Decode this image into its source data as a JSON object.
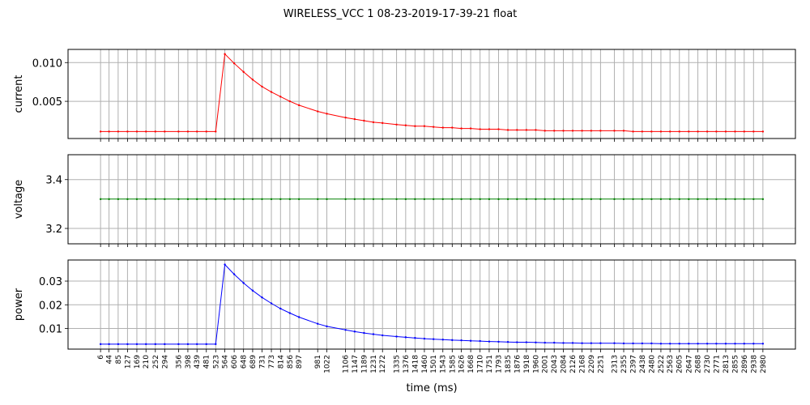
{
  "figure": {
    "title": "WIRELESS_VCC   1   08-23-2019-17-39-21   float",
    "xlabel": "time (ms)"
  },
  "chart_data": [
    {
      "type": "line",
      "ylabel": "current",
      "color": "#ff0000",
      "ylim": [
        0.0002,
        0.0117
      ],
      "yticks": [
        0.005,
        0.01
      ],
      "ytick_labels": [
        "0.005",
        "0.010"
      ],
      "grid": true,
      "x": [
        6,
        44,
        85,
        127,
        169,
        210,
        252,
        294,
        356,
        398,
        439,
        481,
        523,
        564,
        606,
        648,
        689,
        731,
        773,
        814,
        856,
        897,
        981,
        1022,
        1106,
        1147,
        1189,
        1231,
        1272,
        1335,
        1376,
        1418,
        1460,
        1501,
        1543,
        1585,
        1626,
        1668,
        1710,
        1751,
        1793,
        1835,
        1876,
        1918,
        1960,
        2001,
        2043,
        2084,
        2126,
        2168,
        2209,
        2251,
        2313,
        2355,
        2397,
        2438,
        2480,
        2522,
        2563,
        2605,
        2647,
        2688,
        2730,
        2771,
        2813,
        2855,
        2896,
        2938,
        2980
      ],
      "values": [
        0.0011,
        0.0011,
        0.0011,
        0.0011,
        0.0011,
        0.0011,
        0.0011,
        0.0011,
        0.0011,
        0.0011,
        0.0011,
        0.0011,
        0.0011,
        0.0111,
        0.0099,
        0.0088,
        0.0078,
        0.0069,
        0.0062,
        0.0056,
        0.005,
        0.0045,
        0.0037,
        0.0034,
        0.0029,
        0.0027,
        0.0025,
        0.0023,
        0.0022,
        0.002,
        0.0019,
        0.0018,
        0.0018,
        0.0017,
        0.0016,
        0.0016,
        0.0015,
        0.0015,
        0.0014,
        0.0014,
        0.0014,
        0.0013,
        0.0013,
        0.0013,
        0.0013,
        0.0012,
        0.0012,
        0.0012,
        0.0012,
        0.0012,
        0.0012,
        0.0012,
        0.0012,
        0.0012,
        0.0011,
        0.0011,
        0.0011,
        0.0011,
        0.0011,
        0.0011,
        0.0011,
        0.0011,
        0.0011,
        0.0011,
        0.0011,
        0.0011,
        0.0011,
        0.0011,
        0.0011
      ]
    },
    {
      "type": "line",
      "ylabel": "voltage",
      "color": "#008000",
      "ylim": [
        3.137,
        3.502
      ],
      "yticks": [
        3.2,
        3.4
      ],
      "ytick_labels": [
        "3.2",
        "3.4"
      ],
      "grid": true,
      "x": [
        6,
        44,
        85,
        127,
        169,
        210,
        252,
        294,
        356,
        398,
        439,
        481,
        523,
        564,
        606,
        648,
        689,
        731,
        773,
        814,
        856,
        897,
        981,
        1022,
        1106,
        1147,
        1189,
        1231,
        1272,
        1335,
        1376,
        1418,
        1460,
        1501,
        1543,
        1585,
        1626,
        1668,
        1710,
        1751,
        1793,
        1835,
        1876,
        1918,
        1960,
        2001,
        2043,
        2084,
        2126,
        2168,
        2209,
        2251,
        2313,
        2355,
        2397,
        2438,
        2480,
        2522,
        2563,
        2605,
        2647,
        2688,
        2730,
        2771,
        2813,
        2855,
        2896,
        2938,
        2980
      ],
      "values": [
        3.32,
        3.32,
        3.32,
        3.32,
        3.32,
        3.32,
        3.32,
        3.32,
        3.32,
        3.32,
        3.32,
        3.32,
        3.32,
        3.32,
        3.32,
        3.32,
        3.32,
        3.32,
        3.32,
        3.32,
        3.32,
        3.32,
        3.32,
        3.32,
        3.32,
        3.32,
        3.32,
        3.32,
        3.32,
        3.32,
        3.32,
        3.32,
        3.32,
        3.32,
        3.32,
        3.32,
        3.32,
        3.32,
        3.32,
        3.32,
        3.32,
        3.32,
        3.32,
        3.32,
        3.32,
        3.32,
        3.32,
        3.32,
        3.32,
        3.32,
        3.32,
        3.32,
        3.32,
        3.32,
        3.32,
        3.32,
        3.32,
        3.32,
        3.32,
        3.32,
        3.32,
        3.32,
        3.32,
        3.32,
        3.32,
        3.32,
        3.32,
        3.32,
        3.32
      ]
    },
    {
      "type": "line",
      "ylabel": "power",
      "color": "#0000ff",
      "ylim": [
        0.0013,
        0.0389
      ],
      "yticks": [
        0.01,
        0.02,
        0.03
      ],
      "ytick_labels": [
        "0.01",
        "0.02",
        "0.03"
      ],
      "grid": true,
      "x": [
        6,
        44,
        85,
        127,
        169,
        210,
        252,
        294,
        356,
        398,
        439,
        481,
        523,
        564,
        606,
        648,
        689,
        731,
        773,
        814,
        856,
        897,
        981,
        1022,
        1106,
        1147,
        1189,
        1231,
        1272,
        1335,
        1376,
        1418,
        1460,
        1501,
        1543,
        1585,
        1626,
        1668,
        1710,
        1751,
        1793,
        1835,
        1876,
        1918,
        1960,
        2001,
        2043,
        2084,
        2126,
        2168,
        2209,
        2251,
        2313,
        2355,
        2397,
        2438,
        2480,
        2522,
        2563,
        2605,
        2647,
        2688,
        2730,
        2771,
        2813,
        2855,
        2896,
        2938,
        2980
      ],
      "values": [
        0.0034,
        0.0034,
        0.0034,
        0.0034,
        0.0034,
        0.0034,
        0.0034,
        0.0034,
        0.0034,
        0.0034,
        0.0034,
        0.0034,
        0.0034,
        0.037,
        0.0329,
        0.0292,
        0.026,
        0.0231,
        0.0206,
        0.0184,
        0.0165,
        0.0148,
        0.012,
        0.0109,
        0.0094,
        0.0087,
        0.0081,
        0.0076,
        0.0071,
        0.0066,
        0.0063,
        0.006,
        0.0057,
        0.0055,
        0.0053,
        0.0051,
        0.005,
        0.0048,
        0.0047,
        0.0045,
        0.0044,
        0.0043,
        0.0042,
        0.0042,
        0.0041,
        0.004,
        0.004,
        0.0039,
        0.0039,
        0.0038,
        0.0038,
        0.0038,
        0.0038,
        0.0037,
        0.0037,
        0.0037,
        0.0037,
        0.0036,
        0.0036,
        0.0036,
        0.0036,
        0.0036,
        0.0036,
        0.0036,
        0.0036,
        0.0036,
        0.0036,
        0.0036,
        0.0036
      ]
    }
  ]
}
